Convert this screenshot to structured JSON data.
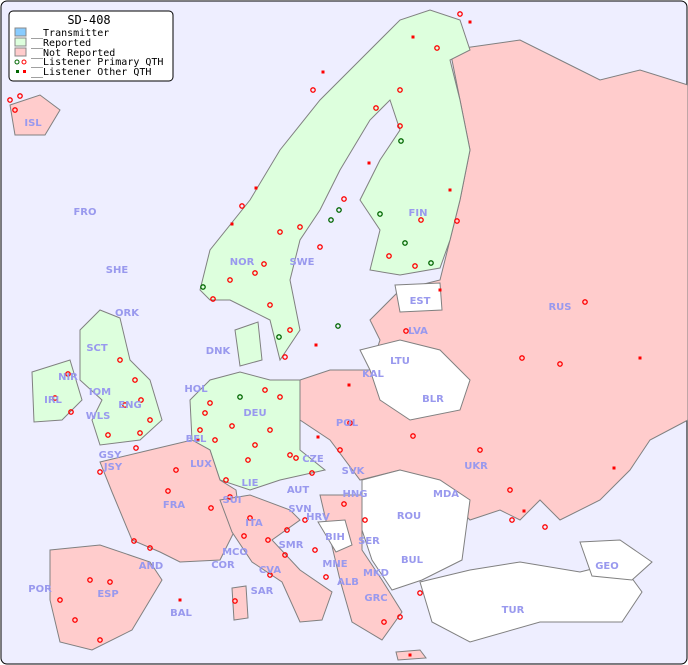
{
  "legend": {
    "title": "SD-408",
    "items": [
      {
        "label": "__Transmitter",
        "color": "#88ccff"
      },
      {
        "label": "__Reported",
        "color": "#ddffdd"
      },
      {
        "label": "__Not Reported",
        "color": "#ffcccc"
      },
      {
        "label": "__Listener Primary QTH",
        "colors": [
          "#006600",
          "#ff0000"
        ]
      },
      {
        "label": "__Listener Other QTH",
        "colors": [
          "#006600",
          "#ff0000"
        ]
      }
    ]
  },
  "colors": {
    "sea": "#eeeeff",
    "reported": "#ddffdd",
    "not_reported": "#ffcccc",
    "no_data": "#ffffff",
    "label": "#9999ee",
    "border": "#808080"
  },
  "countries": {
    "reported": [
      "FIN",
      "NOR",
      "SWE",
      "DNK",
      "DEU",
      "CZE",
      "SCT",
      "ENG",
      "IRL",
      "IOM",
      "LIE",
      "HOL",
      "BEL"
    ],
    "not_reported": [
      "ISL",
      "RUS",
      "EST",
      "LVA",
      "KAL",
      "POL",
      "UKR",
      "SVK",
      "HNG",
      "AUT",
      "SUI",
      "FRA",
      "LUX",
      "ITA",
      "SVN",
      "HRV",
      "SER",
      "MNE",
      "ALB",
      "MKD",
      "GRC",
      "ESP",
      "POR",
      "AND",
      "MCO",
      "COR",
      "CVA",
      "SMR",
      "SAR",
      "BAL",
      "NIR",
      "WLS",
      "GSY",
      "JSY",
      "FRO",
      "SHE",
      "ORK"
    ],
    "no_data": [
      "LTU",
      "BLR",
      "MDA",
      "ROU",
      "BUL",
      "BIH",
      "TUR",
      "GEO"
    ]
  },
  "labels": [
    "ISL",
    "FRO",
    "SHE",
    "ORK",
    "FIN",
    "NOR",
    "SWE",
    "EST",
    "LVA",
    "RUS",
    "DNK",
    "LTU",
    "KAL",
    "BLR",
    "SCT",
    "NIR",
    "IRL",
    "IOM",
    "ENG",
    "WLS",
    "HOL",
    "DEU",
    "POL",
    "BEL",
    "GSY",
    "JSY",
    "LUX",
    "CZE",
    "UKR",
    "SVK",
    "FRA",
    "LIE",
    "AUT",
    "HNG",
    "MDA",
    "SUI",
    "SVN",
    "HRV",
    "ROU",
    "ITA",
    "BIH",
    "SER",
    "SMR",
    "MCO",
    "COR",
    "AND",
    "CVA",
    "MNE",
    "BUL",
    "GEO",
    "POR",
    "ESP",
    "SAR",
    "ALB",
    "MKD",
    "BAL",
    "GRC",
    "TUR"
  ]
}
